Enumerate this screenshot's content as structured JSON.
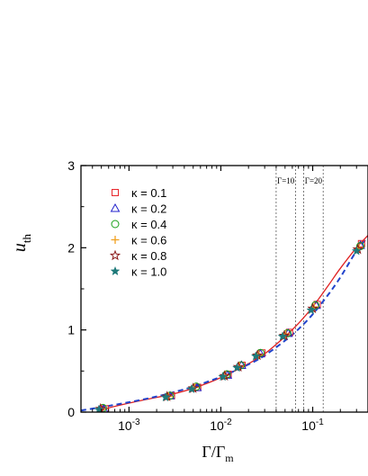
{
  "chart_data": {
    "type": "scatter",
    "title": "",
    "x_scale": "log",
    "xlim": [
      0.0003,
      0.4
    ],
    "ylim": [
      0,
      3
    ],
    "xlabel": {
      "main": "Γ/Γ",
      "sub": "m"
    },
    "ylabel": {
      "main": "u",
      "sub": "th"
    },
    "x_ticks": [
      {
        "value": 0.001,
        "base": "10",
        "exp": "-3"
      },
      {
        "value": 0.01,
        "base": "10",
        "exp": "-2"
      },
      {
        "value": 0.1,
        "base": "10",
        "exp": "-1"
      }
    ],
    "y_ticks": [
      {
        "value": 0,
        "label": "0"
      },
      {
        "value": 1,
        "label": "1"
      },
      {
        "value": 2,
        "label": "2"
      },
      {
        "value": 3,
        "label": "3"
      }
    ],
    "legend_position": "top-left",
    "series": [
      {
        "name": "κ = 0.1",
        "marker": "square",
        "color": "#e8262b",
        "x": [
          0.00055,
          0.0029,
          0.0056,
          0.012,
          0.017,
          0.028,
          0.056,
          0.112,
          0.34
        ],
        "y": [
          0.04,
          0.2,
          0.3,
          0.46,
          0.57,
          0.72,
          0.97,
          1.31,
          2.05
        ]
      },
      {
        "name": "κ = 0.2",
        "marker": "triangle",
        "color": "#2222cc",
        "x": [
          0.00053,
          0.0028,
          0.0055,
          0.0118,
          0.0168,
          0.027,
          0.054,
          0.109,
          0.33
        ],
        "y": [
          0.04,
          0.2,
          0.3,
          0.45,
          0.57,
          0.71,
          0.96,
          1.3,
          2.03
        ]
      },
      {
        "name": "κ = 0.4",
        "marker": "circle",
        "color": "#18a018",
        "x": [
          0.00052,
          0.0028,
          0.0054,
          0.0116,
          0.0165,
          0.027,
          0.053,
          0.107,
          0.33
        ],
        "y": [
          0.05,
          0.2,
          0.31,
          0.46,
          0.57,
          0.72,
          0.96,
          1.3,
          2.02
        ]
      },
      {
        "name": "κ = 0.6",
        "marker": "plus",
        "color": "#f0a020",
        "x": [
          0.0005,
          0.0027,
          0.0052,
          0.0112,
          0.016,
          0.026,
          0.051,
          0.104,
          0.32
        ],
        "y": [
          0.04,
          0.19,
          0.3,
          0.45,
          0.56,
          0.7,
          0.95,
          1.28,
          2.0
        ]
      },
      {
        "name": "κ = 0.8",
        "marker": "star-open",
        "color": "#8b1a1a",
        "x": [
          0.00049,
          0.0026,
          0.005,
          0.011,
          0.0155,
          0.025,
          0.049,
          0.1,
          0.31
        ],
        "y": [
          0.04,
          0.19,
          0.29,
          0.44,
          0.55,
          0.69,
          0.93,
          1.26,
          1.98
        ]
      },
      {
        "name": "κ = 1.0",
        "marker": "star",
        "color": "#1f7a7a",
        "x": [
          0.00047,
          0.0025,
          0.0048,
          0.0105,
          0.015,
          0.024,
          0.047,
          0.096,
          0.3
        ],
        "y": [
          0.03,
          0.18,
          0.28,
          0.43,
          0.54,
          0.68,
          0.92,
          1.24,
          1.96
        ]
      }
    ],
    "fit_lines": [
      {
        "style": "solid",
        "color": "#e02020",
        "x": [
          0.00045,
          0.0006,
          0.001,
          0.002,
          0.003,
          0.005,
          0.01,
          0.02,
          0.03,
          0.05,
          0.07,
          0.1,
          0.15,
          0.2,
          0.3,
          0.4
        ],
        "y": [
          0.0,
          0.05,
          0.11,
          0.18,
          0.22,
          0.29,
          0.42,
          0.59,
          0.71,
          0.92,
          1.08,
          1.28,
          1.55,
          1.75,
          2.0,
          2.15
        ]
      },
      {
        "style": "dashed",
        "color": "#2244cc",
        "x": [
          0.0003,
          0.0005,
          0.001,
          0.002,
          0.003,
          0.005,
          0.01,
          0.02,
          0.03,
          0.05,
          0.07,
          0.1,
          0.15,
          0.2,
          0.3,
          0.4
        ],
        "y": [
          0.02,
          0.06,
          0.12,
          0.19,
          0.24,
          0.31,
          0.43,
          0.58,
          0.69,
          0.87,
          1.01,
          1.19,
          1.44,
          1.64,
          1.96,
          2.13
        ]
      }
    ],
    "annotations": [
      {
        "label": "Γ=10",
        "x1": 0.04,
        "x2": 0.065
      },
      {
        "label": "Γ=20",
        "x1": 0.08,
        "x2": 0.13
      }
    ]
  }
}
